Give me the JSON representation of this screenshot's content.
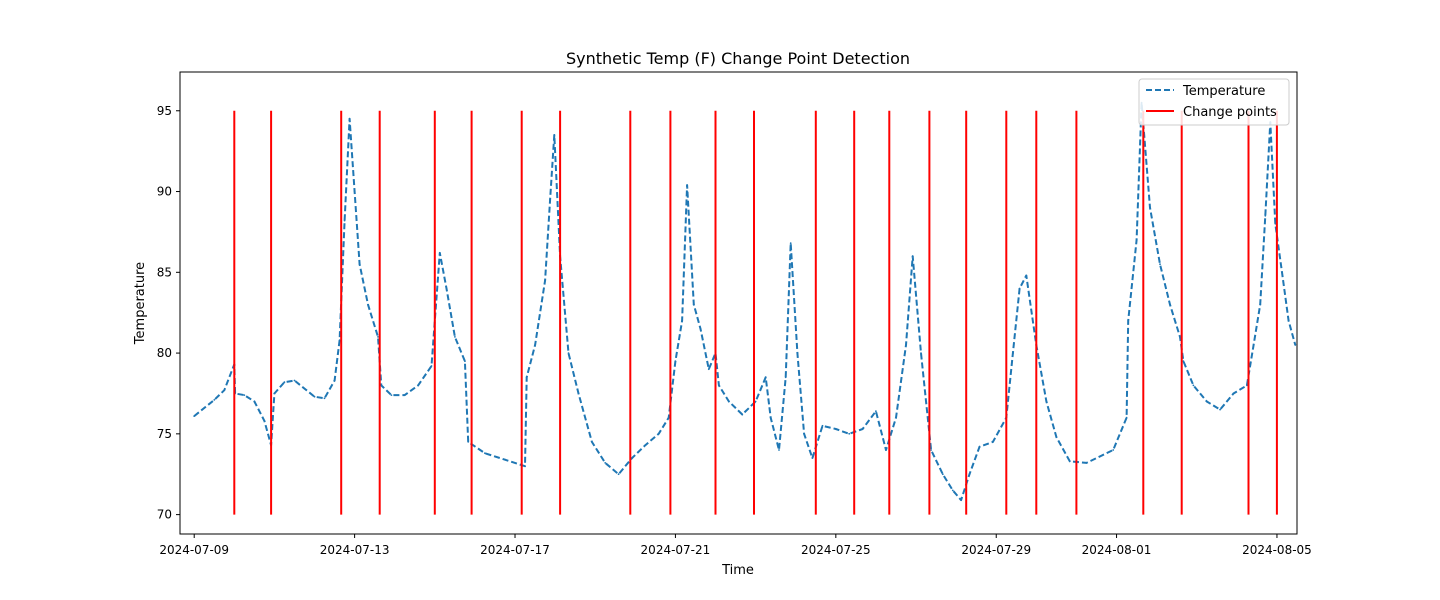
{
  "chart_data": {
    "type": "line",
    "title": "Synthetic Temp (F) Change Point Detection",
    "xlabel": "Time",
    "ylabel": "Temperature",
    "xlim": [
      "2024-07-08T15:30",
      "2024-08-05T12:00"
    ],
    "ylim": [
      68.8,
      97.4
    ],
    "x_ticks": [
      "2024-07-09",
      "2024-07-13",
      "2024-07-17",
      "2024-07-21",
      "2024-07-25",
      "2024-07-29",
      "2024-08-01",
      "2024-08-05"
    ],
    "y_ticks": [
      70,
      75,
      80,
      85,
      90,
      95
    ],
    "grid": false,
    "legend_position": "top-right",
    "series": [
      {
        "name": "Temperature",
        "color": "#1f77b4",
        "style": "dashed",
        "points": [
          [
            "2024-07-09T00:00",
            76.1
          ],
          [
            "2024-07-09T06:00",
            76.6
          ],
          [
            "2024-07-09T12:00",
            77.1
          ],
          [
            "2024-07-09T18:00",
            77.7
          ],
          [
            "2024-07-10T00:00",
            79.3
          ],
          [
            "2024-07-10T00:30",
            77.5
          ],
          [
            "2024-07-10T06:00",
            77.4
          ],
          [
            "2024-07-10T12:00",
            77.0
          ],
          [
            "2024-07-10T18:00",
            75.8
          ],
          [
            "2024-07-10T22:00",
            74.3
          ],
          [
            "2024-07-11T00:00",
            77.5
          ],
          [
            "2024-07-11T06:00",
            78.2
          ],
          [
            "2024-07-11T12:00",
            78.3
          ],
          [
            "2024-07-11T18:00",
            77.8
          ],
          [
            "2024-07-12T00:00",
            77.3
          ],
          [
            "2024-07-12T06:00",
            77.2
          ],
          [
            "2024-07-12T12:00",
            78.3
          ],
          [
            "2024-07-12T15:00",
            80.8
          ],
          [
            "2024-07-12T18:00",
            88.2
          ],
          [
            "2024-07-12T21:00",
            94.5
          ],
          [
            "2024-07-13T00:00",
            90.0
          ],
          [
            "2024-07-13T03:00",
            85.5
          ],
          [
            "2024-07-13T08:00",
            83.0
          ],
          [
            "2024-07-13T14:00",
            81.0
          ],
          [
            "2024-07-13T16:00",
            78.0
          ],
          [
            "2024-07-13T22:00",
            77.4
          ],
          [
            "2024-07-14T06:00",
            77.4
          ],
          [
            "2024-07-14T14:00",
            78.0
          ],
          [
            "2024-07-14T22:00",
            79.2
          ],
          [
            "2024-07-15T00:00",
            82.0
          ],
          [
            "2024-07-15T03:00",
            86.2
          ],
          [
            "2024-07-15T07:00",
            84.0
          ],
          [
            "2024-07-15T12:00",
            81.0
          ],
          [
            "2024-07-15T18:00",
            79.5
          ],
          [
            "2024-07-15T20:00",
            74.5
          ],
          [
            "2024-07-16T06:00",
            73.8
          ],
          [
            "2024-07-16T18:00",
            73.4
          ],
          [
            "2024-07-17T06:00",
            73.0
          ],
          [
            "2024-07-17T07:00",
            78.5
          ],
          [
            "2024-07-17T12:00",
            80.5
          ],
          [
            "2024-07-17T18:00",
            84.5
          ],
          [
            "2024-07-17T21:00",
            89.5
          ],
          [
            "2024-07-17T23:30",
            93.5
          ],
          [
            "2024-07-18T03:00",
            86.0
          ],
          [
            "2024-07-18T08:00",
            80.0
          ],
          [
            "2024-07-18T14:00",
            77.5
          ],
          [
            "2024-07-18T22:00",
            74.5
          ],
          [
            "2024-07-19T06:00",
            73.2
          ],
          [
            "2024-07-19T14:00",
            72.5
          ],
          [
            "2024-07-19T22:00",
            73.5
          ],
          [
            "2024-07-20T06:00",
            74.3
          ],
          [
            "2024-07-20T14:00",
            75.0
          ],
          [
            "2024-07-20T20:00",
            76.0
          ],
          [
            "2024-07-21T00:00",
            79.5
          ],
          [
            "2024-07-21T04:00",
            82.0
          ],
          [
            "2024-07-21T07:00",
            90.4
          ],
          [
            "2024-07-21T11:00",
            83.0
          ],
          [
            "2024-07-21T15:00",
            81.5
          ],
          [
            "2024-07-21T20:00",
            79.0
          ],
          [
            "2024-07-22T00:00",
            80.0
          ],
          [
            "2024-07-22T02:00",
            78.0
          ],
          [
            "2024-07-22T08:00",
            77.0
          ],
          [
            "2024-07-22T16:00",
            76.2
          ],
          [
            "2024-07-23T00:00",
            77.0
          ],
          [
            "2024-07-23T06:00",
            78.5
          ],
          [
            "2024-07-23T09:00",
            76.0
          ],
          [
            "2024-07-23T14:00",
            74.0
          ],
          [
            "2024-07-23T18:00",
            78.5
          ],
          [
            "2024-07-23T21:00",
            86.8
          ],
          [
            "2024-07-24T01:00",
            80.0
          ],
          [
            "2024-07-24T05:00",
            75.0
          ],
          [
            "2024-07-24T10:00",
            73.5
          ],
          [
            "2024-07-24T16:00",
            75.5
          ],
          [
            "2024-07-25T00:00",
            75.3
          ],
          [
            "2024-07-25T08:00",
            75.0
          ],
          [
            "2024-07-25T16:00",
            75.3
          ],
          [
            "2024-07-26T00:00",
            76.4
          ],
          [
            "2024-07-26T06:00",
            74.0
          ],
          [
            "2024-07-26T12:00",
            76.0
          ],
          [
            "2024-07-26T18:00",
            80.5
          ],
          [
            "2024-07-26T22:00",
            86.0
          ],
          [
            "2024-07-27T03:00",
            80.0
          ],
          [
            "2024-07-27T09:00",
            74.0
          ],
          [
            "2024-07-27T16:00",
            72.5
          ],
          [
            "2024-07-27T22:00",
            71.5
          ],
          [
            "2024-07-28T03:00",
            70.9
          ],
          [
            "2024-07-28T08:00",
            72.5
          ],
          [
            "2024-07-28T14:00",
            74.2
          ],
          [
            "2024-07-28T22:00",
            74.5
          ],
          [
            "2024-07-29T06:00",
            76.0
          ],
          [
            "2024-07-29T10:00",
            80.0
          ],
          [
            "2024-07-29T14:00",
            84.0
          ],
          [
            "2024-07-29T18:00",
            84.8
          ],
          [
            "2024-07-30T00:00",
            80.5
          ],
          [
            "2024-07-30T06:00",
            77.0
          ],
          [
            "2024-07-30T12:00",
            74.8
          ],
          [
            "2024-07-30T20:00",
            73.3
          ],
          [
            "2024-07-31T06:00",
            73.2
          ],
          [
            "2024-07-31T14:00",
            73.6
          ],
          [
            "2024-07-31T22:00",
            74.0
          ],
          [
            "2024-08-01T06:00",
            76.0
          ],
          [
            "2024-08-01T07:00",
            82.0
          ],
          [
            "2024-08-01T12:00",
            87.0
          ],
          [
            "2024-08-01T15:00",
            95.5
          ],
          [
            "2024-08-01T20:00",
            89.0
          ],
          [
            "2024-08-02T02:00",
            85.5
          ],
          [
            "2024-08-02T08:00",
            83.0
          ],
          [
            "2024-08-02T14:00",
            81.0
          ],
          [
            "2024-08-02T16:00",
            79.5
          ],
          [
            "2024-08-02T22:00",
            78.0
          ],
          [
            "2024-08-03T06:00",
            77.0
          ],
          [
            "2024-08-03T14:00",
            76.5
          ],
          [
            "2024-08-03T22:00",
            77.5
          ],
          [
            "2024-08-04T06:00",
            78.0
          ],
          [
            "2024-08-04T10:00",
            80.5
          ],
          [
            "2024-08-04T14:00",
            83.0
          ],
          [
            "2024-08-04T17:00",
            88.5
          ],
          [
            "2024-08-04T20:00",
            94.3
          ],
          [
            "2024-08-04T23:00",
            88.0
          ],
          [
            "2024-08-05T03:00",
            85.0
          ],
          [
            "2024-08-05T07:00",
            82.0
          ],
          [
            "2024-08-05T11:00",
            80.5
          ]
        ]
      }
    ],
    "change_points": {
      "name": "Change points",
      "color": "#ff0000",
      "y_range": [
        70,
        95
      ],
      "x": [
        "2024-07-10T00:00",
        "2024-07-10T22:00",
        "2024-07-12T16:00",
        "2024-07-13T15:00",
        "2024-07-15T00:00",
        "2024-07-15T22:00",
        "2024-07-17T04:00",
        "2024-07-18T03:00",
        "2024-07-19T21:00",
        "2024-07-20T21:00",
        "2024-07-22T00:00",
        "2024-07-22T23:00",
        "2024-07-24T12:00",
        "2024-07-25T11:00",
        "2024-07-26T08:00",
        "2024-07-27T08:00",
        "2024-07-28T06:00",
        "2024-07-29T06:00",
        "2024-07-30T00:00",
        "2024-07-31T00:00",
        "2024-08-01T16:00",
        "2024-08-02T15:00",
        "2024-08-04T07:00",
        "2024-08-05T00:00"
      ]
    }
  }
}
